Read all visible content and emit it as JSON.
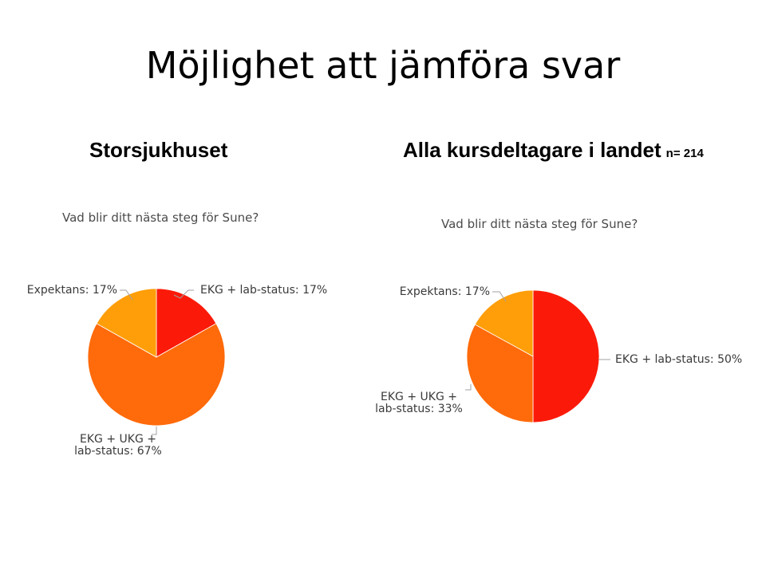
{
  "title": "Möjlighet att jämföra svar",
  "chart_data": [
    {
      "type": "pie",
      "title": "Storsjukhuset",
      "subtitle": "Vad blir ditt nästa steg för Sune?",
      "slices": [
        {
          "label": "EKG + lab-status",
          "value": 17,
          "label_text": "EKG + lab-status: 17%",
          "color": "#fb1a09"
        },
        {
          "label": "EKG + UKG + lab-status",
          "value": 67,
          "label_text": "EKG + UKG +\nlab-status: 67%",
          "color": "#ff6a0a"
        },
        {
          "label": "Expektans",
          "value": 17,
          "label_text": "Expektans: 17%",
          "color": "#ff9e08"
        }
      ]
    },
    {
      "type": "pie",
      "title": "Alla kursdeltagare  i landet",
      "n_label": "n= 214",
      "subtitle": "Vad blir ditt nästa steg för Sune?",
      "slices": [
        {
          "label": "EKG + lab-status",
          "value": 50,
          "label_text": "EKG + lab-status: 50%",
          "color": "#fb1a09"
        },
        {
          "label": "EKG + UKG + lab-status",
          "value": 33,
          "label_text": "EKG + UKG +\nlab-status: 33%",
          "color": "#ff6a0a"
        },
        {
          "label": "Expektans",
          "value": 17,
          "label_text": "Expektans: 17%",
          "color": "#ff9e08"
        }
      ]
    }
  ]
}
